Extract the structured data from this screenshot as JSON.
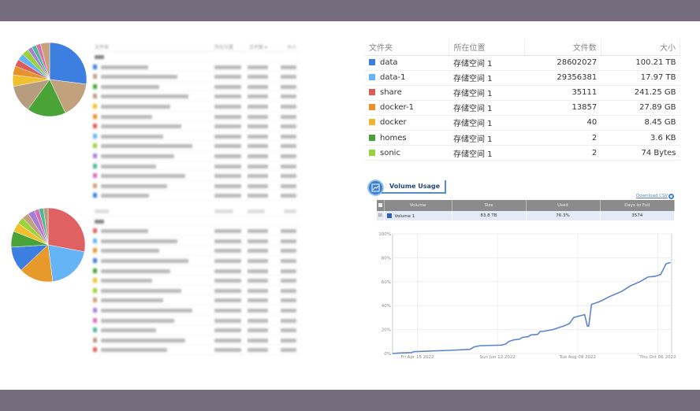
{
  "left_tables": {
    "header": {
      "folder": "文件夹",
      "location": "所在位置",
      "count": "文件数 ▾",
      "size": "大小"
    }
  },
  "pie_top": {
    "slices": [
      {
        "v": 27,
        "c": "#3d7fe0"
      },
      {
        "v": 16,
        "c": "#c2a27c"
      },
      {
        "v": 17,
        "c": "#4aa336"
      },
      {
        "v": 12,
        "c": "#b89c80"
      },
      {
        "v": 5,
        "c": "#f0c02e"
      },
      {
        "v": 4,
        "c": "#e8922c"
      },
      {
        "v": 3,
        "c": "#e05a5a"
      },
      {
        "v": 3,
        "c": "#65b4f5"
      },
      {
        "v": 3,
        "c": "#9bd13a"
      },
      {
        "v": 2,
        "c": "#a77ed8"
      },
      {
        "v": 2,
        "c": "#4bb89a"
      },
      {
        "v": 2,
        "c": "#d86fb1"
      },
      {
        "v": 4,
        "c": "#c9a27a"
      }
    ]
  },
  "pie_bottom": {
    "slices": [
      {
        "v": 28,
        "c": "#e06161"
      },
      {
        "v": 20,
        "c": "#65b4f5"
      },
      {
        "v": 15,
        "c": "#e8992c"
      },
      {
        "v": 11,
        "c": "#3d7fe0"
      },
      {
        "v": 7,
        "c": "#4aa336"
      },
      {
        "v": 4,
        "c": "#f0c02e"
      },
      {
        "v": 3,
        "c": "#9bd13a"
      },
      {
        "v": 3,
        "c": "#c2a27c"
      },
      {
        "v": 3,
        "c": "#a77ed8"
      },
      {
        "v": 2,
        "c": "#d86fb1"
      },
      {
        "v": 2,
        "c": "#4bb89a"
      },
      {
        "v": 2,
        "c": "#b89c80"
      }
    ]
  },
  "folder_table": {
    "headers": [
      "文件夹",
      "所在位置",
      "文件数",
      "大小"
    ],
    "rows": [
      {
        "name": "data",
        "color": "#3d7fe0",
        "location": "存储空间 1",
        "count": "28602027",
        "size": "100.21 TB"
      },
      {
        "name": "data-1",
        "color": "#65b4f5",
        "location": "存储空间 1",
        "count": "29356381",
        "size": "17.97 TB"
      },
      {
        "name": "share",
        "color": "#e05a5a",
        "location": "存储空间 1",
        "count": "35111",
        "size": "241.25 GB"
      },
      {
        "name": "docker-1",
        "color": "#e8922c",
        "location": "存储空间 1",
        "count": "13857",
        "size": "27.89 GB"
      },
      {
        "name": "docker",
        "color": "#f0b52e",
        "location": "存储空间 1",
        "count": "40",
        "size": "8.45 GB"
      },
      {
        "name": "homes",
        "color": "#4aa336",
        "location": "存储空间 1",
        "count": "2",
        "size": "3.6 KB"
      },
      {
        "name": "sonic",
        "color": "#9bd13a",
        "location": "存储空间 1",
        "count": "2",
        "size": "74 Bytes"
      }
    ]
  },
  "volume_usage": {
    "title": "Volume Usage",
    "download": "Download CSV",
    "headers": [
      "Volume",
      "Size",
      "Used",
      "Days to Full"
    ],
    "row": {
      "volume": "Volume 1",
      "size": "83.8 TB",
      "used": "76.3%",
      "days": "3574",
      "color": "#2b5fb8"
    }
  },
  "chart_data": {
    "type": "line",
    "x_range": [
      "2022-03-28",
      "2022-10-16"
    ],
    "ylim": [
      0,
      100
    ],
    "yticks": [
      "0%",
      "20%",
      "40%",
      "60%",
      "80%",
      "100%"
    ],
    "xticks": [
      {
        "date": "2022-04-15",
        "label": "Fri Apr 15 2022"
      },
      {
        "date": "2022-06-12",
        "label": "Sun Jun 12 2022"
      },
      {
        "date": "2022-08-09",
        "label": "Tue Aug 09 2022"
      },
      {
        "date": "2022-10-06",
        "label": "Thu Oct 06 2022"
      }
    ],
    "grid": true,
    "color": "#5b84cc",
    "points": [
      [
        "2022-03-28",
        0
      ],
      [
        "2022-03-31",
        0.3
      ],
      [
        "2022-04-11",
        0.8
      ],
      [
        "2022-04-12",
        1.5
      ],
      [
        "2022-05-11",
        2.8
      ],
      [
        "2022-05-23",
        3.5
      ],
      [
        "2022-05-26",
        5.5
      ],
      [
        "2022-05-30",
        6.5
      ],
      [
        "2022-06-15",
        7
      ],
      [
        "2022-06-18",
        8
      ],
      [
        "2022-06-20",
        10
      ],
      [
        "2022-06-24",
        11.5
      ],
      [
        "2022-06-28",
        12
      ],
      [
        "2022-06-30",
        13.5
      ],
      [
        "2022-07-04",
        14
      ],
      [
        "2022-07-06",
        15.5
      ],
      [
        "2022-07-11",
        16
      ],
      [
        "2022-07-13",
        18.5
      ],
      [
        "2022-07-15",
        18.5
      ],
      [
        "2022-07-22",
        20
      ],
      [
        "2022-07-30",
        23
      ],
      [
        "2022-08-03",
        25
      ],
      [
        "2022-08-06",
        30
      ],
      [
        "2022-08-09",
        31
      ],
      [
        "2022-08-14",
        32.5
      ],
      [
        "2022-08-16",
        23
      ],
      [
        "2022-08-17",
        23
      ],
      [
        "2022-08-19",
        41
      ],
      [
        "2022-08-24",
        43
      ],
      [
        "2022-08-27",
        44.5
      ],
      [
        "2022-08-31",
        47
      ],
      [
        "2022-09-04",
        49
      ],
      [
        "2022-09-10",
        52
      ],
      [
        "2022-09-14",
        55
      ],
      [
        "2022-09-17",
        57
      ],
      [
        "2022-09-23",
        60
      ],
      [
        "2022-09-29",
        64
      ],
      [
        "2022-10-04",
        64.5
      ],
      [
        "2022-10-08",
        66
      ],
      [
        "2022-10-12",
        75
      ],
      [
        "2022-10-15",
        76
      ]
    ]
  }
}
